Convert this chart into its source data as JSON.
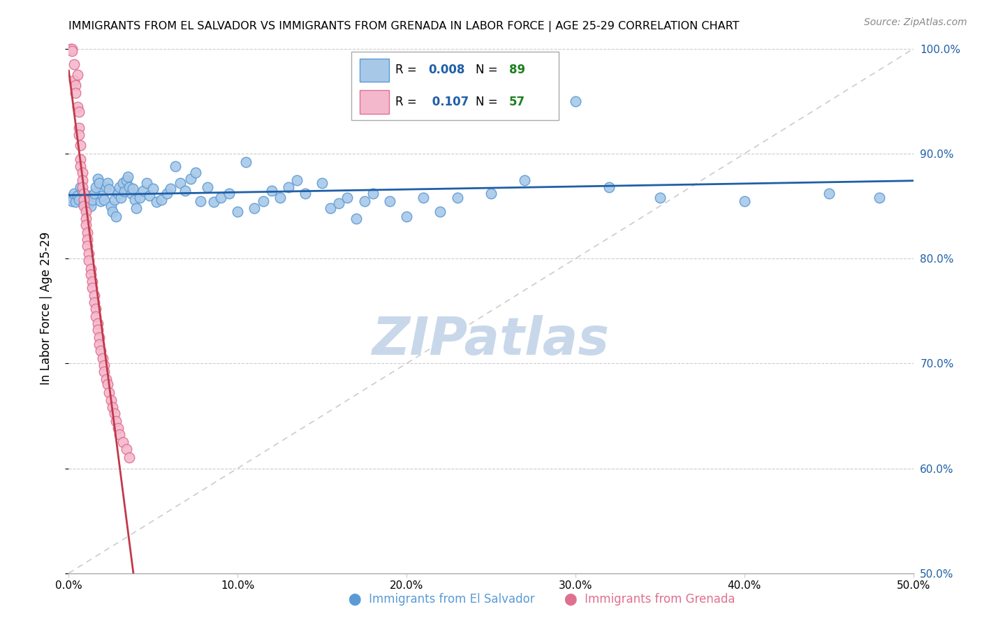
{
  "title": "IMMIGRANTS FROM EL SALVADOR VS IMMIGRANTS FROM GRENADA IN LABOR FORCE | AGE 25-29 CORRELATION CHART",
  "source": "Source: ZipAtlas.com",
  "ylabel": "In Labor Force | Age 25-29",
  "xlim": [
    0.0,
    0.5
  ],
  "ylim": [
    0.5,
    1.005
  ],
  "xticks": [
    0.0,
    0.1,
    0.2,
    0.3,
    0.4,
    0.5
  ],
  "xticklabels": [
    "0.0%",
    "10.0%",
    "20.0%",
    "30.0%",
    "40.0%",
    "50.0%"
  ],
  "yticks": [
    0.5,
    0.6,
    0.7,
    0.8,
    0.9,
    1.0
  ],
  "yticklabels_right": [
    "50.0%",
    "60.0%",
    "70.0%",
    "80.0%",
    "90.0%",
    "100.0%"
  ],
  "blue_color": "#a8c8e8",
  "blue_edge_color": "#5b9bd5",
  "pink_color": "#f4b8cc",
  "pink_edge_color": "#e07090",
  "trend_blue_color": "#1f5fa6",
  "trend_pink_color": "#c0394b",
  "diag_color": "#cccccc",
  "R_blue": 0.008,
  "N_blue": 89,
  "R_pink": 0.107,
  "N_pink": 57,
  "legend_R_color": "#1f5fa6",
  "legend_N_color": "#1f8020",
  "watermark": "ZIPatlas",
  "watermark_color": "#c8d8ea",
  "blue_points": [
    [
      0.001,
      0.858
    ],
    [
      0.002,
      0.855
    ],
    [
      0.003,
      0.862
    ],
    [
      0.004,
      0.854
    ],
    [
      0.005,
      0.86
    ],
    [
      0.006,
      0.856
    ],
    [
      0.007,
      0.868
    ],
    [
      0.008,
      0.864
    ],
    [
      0.009,
      0.852
    ],
    [
      0.01,
      0.848
    ],
    [
      0.011,
      0.86
    ],
    [
      0.012,
      0.853
    ],
    [
      0.013,
      0.85
    ],
    [
      0.014,
      0.856
    ],
    [
      0.015,
      0.862
    ],
    [
      0.016,
      0.868
    ],
    [
      0.017,
      0.876
    ],
    [
      0.018,
      0.872
    ],
    [
      0.019,
      0.855
    ],
    [
      0.02,
      0.86
    ],
    [
      0.021,
      0.856
    ],
    [
      0.022,
      0.868
    ],
    [
      0.023,
      0.872
    ],
    [
      0.024,
      0.866
    ],
    [
      0.025,
      0.85
    ],
    [
      0.026,
      0.845
    ],
    [
      0.027,
      0.856
    ],
    [
      0.028,
      0.84
    ],
    [
      0.029,
      0.862
    ],
    [
      0.03,
      0.868
    ],
    [
      0.031,
      0.858
    ],
    [
      0.032,
      0.872
    ],
    [
      0.033,
      0.864
    ],
    [
      0.034,
      0.875
    ],
    [
      0.035,
      0.878
    ],
    [
      0.036,
      0.868
    ],
    [
      0.037,
      0.862
    ],
    [
      0.038,
      0.867
    ],
    [
      0.039,
      0.856
    ],
    [
      0.04,
      0.848
    ],
    [
      0.042,
      0.858
    ],
    [
      0.044,
      0.865
    ],
    [
      0.046,
      0.872
    ],
    [
      0.048,
      0.86
    ],
    [
      0.05,
      0.867
    ],
    [
      0.052,
      0.854
    ],
    [
      0.055,
      0.856
    ],
    [
      0.058,
      0.862
    ],
    [
      0.06,
      0.867
    ],
    [
      0.063,
      0.888
    ],
    [
      0.066,
      0.872
    ],
    [
      0.069,
      0.865
    ],
    [
      0.072,
      0.876
    ],
    [
      0.075,
      0.882
    ],
    [
      0.078,
      0.855
    ],
    [
      0.082,
      0.868
    ],
    [
      0.086,
      0.854
    ],
    [
      0.09,
      0.858
    ],
    [
      0.095,
      0.862
    ],
    [
      0.1,
      0.845
    ],
    [
      0.105,
      0.892
    ],
    [
      0.11,
      0.848
    ],
    [
      0.115,
      0.855
    ],
    [
      0.12,
      0.865
    ],
    [
      0.125,
      0.858
    ],
    [
      0.13,
      0.868
    ],
    [
      0.135,
      0.875
    ],
    [
      0.14,
      0.862
    ],
    [
      0.15,
      0.872
    ],
    [
      0.155,
      0.848
    ],
    [
      0.16,
      0.853
    ],
    [
      0.165,
      0.858
    ],
    [
      0.17,
      0.838
    ],
    [
      0.175,
      0.855
    ],
    [
      0.18,
      0.862
    ],
    [
      0.19,
      0.855
    ],
    [
      0.2,
      0.84
    ],
    [
      0.21,
      0.858
    ],
    [
      0.22,
      0.845
    ],
    [
      0.23,
      0.858
    ],
    [
      0.25,
      0.862
    ],
    [
      0.26,
      0.955
    ],
    [
      0.27,
      0.875
    ],
    [
      0.3,
      0.95
    ],
    [
      0.32,
      0.868
    ],
    [
      0.35,
      0.858
    ],
    [
      0.4,
      0.855
    ],
    [
      0.45,
      0.862
    ],
    [
      0.48,
      0.858
    ]
  ],
  "pink_points": [
    [
      0.001,
      1.0
    ],
    [
      0.002,
      1.0
    ],
    [
      0.002,
      0.998
    ],
    [
      0.003,
      0.985
    ],
    [
      0.003,
      0.97
    ],
    [
      0.004,
      0.965
    ],
    [
      0.004,
      0.958
    ],
    [
      0.005,
      0.975
    ],
    [
      0.005,
      0.945
    ],
    [
      0.006,
      0.94
    ],
    [
      0.006,
      0.925
    ],
    [
      0.006,
      0.918
    ],
    [
      0.007,
      0.908
    ],
    [
      0.007,
      0.895
    ],
    [
      0.007,
      0.888
    ],
    [
      0.008,
      0.882
    ],
    [
      0.008,
      0.875
    ],
    [
      0.008,
      0.868
    ],
    [
      0.009,
      0.862
    ],
    [
      0.009,
      0.856
    ],
    [
      0.009,
      0.85
    ],
    [
      0.01,
      0.845
    ],
    [
      0.01,
      0.838
    ],
    [
      0.01,
      0.832
    ],
    [
      0.011,
      0.825
    ],
    [
      0.011,
      0.818
    ],
    [
      0.011,
      0.812
    ],
    [
      0.012,
      0.805
    ],
    [
      0.012,
      0.798
    ],
    [
      0.013,
      0.79
    ],
    [
      0.013,
      0.785
    ],
    [
      0.014,
      0.778
    ],
    [
      0.014,
      0.772
    ],
    [
      0.015,
      0.765
    ],
    [
      0.015,
      0.758
    ],
    [
      0.016,
      0.752
    ],
    [
      0.016,
      0.745
    ],
    [
      0.017,
      0.738
    ],
    [
      0.017,
      0.732
    ],
    [
      0.018,
      0.725
    ],
    [
      0.018,
      0.718
    ],
    [
      0.019,
      0.712
    ],
    [
      0.02,
      0.705
    ],
    [
      0.021,
      0.698
    ],
    [
      0.021,
      0.692
    ],
    [
      0.022,
      0.685
    ],
    [
      0.023,
      0.68
    ],
    [
      0.024,
      0.672
    ],
    [
      0.025,
      0.665
    ],
    [
      0.026,
      0.658
    ],
    [
      0.027,
      0.652
    ],
    [
      0.028,
      0.645
    ],
    [
      0.029,
      0.638
    ],
    [
      0.03,
      0.632
    ],
    [
      0.032,
      0.625
    ],
    [
      0.034,
      0.618
    ],
    [
      0.036,
      0.61
    ]
  ]
}
